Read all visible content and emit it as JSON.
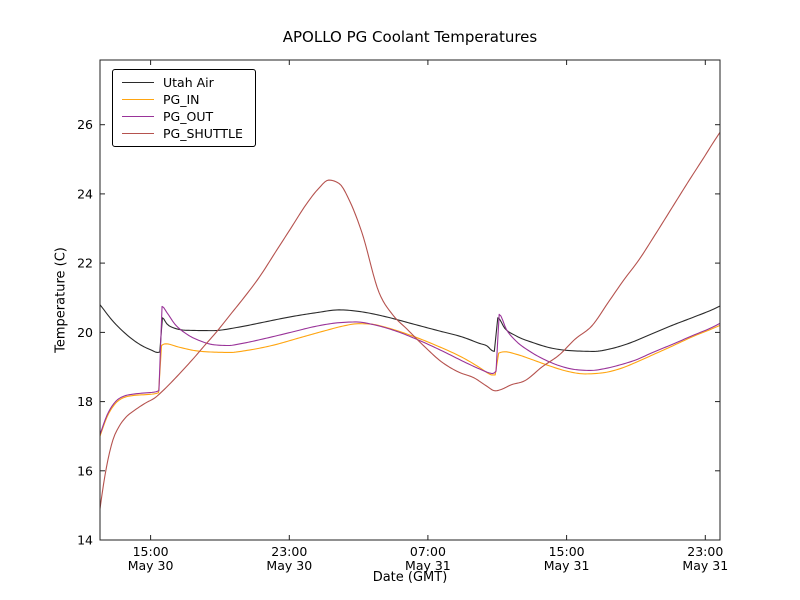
{
  "chart_data": {
    "type": "line",
    "title": "APOLLO PG Coolant Temperatures",
    "xlabel": "Date (GMT)",
    "ylabel": "Temperature (C)",
    "x_unit": "hours since May 30 12:00 GMT",
    "xlim": [
      0,
      35.77
    ],
    "ylim": [
      14,
      27.87
    ],
    "grid": false,
    "legend_position": "upper left",
    "axis_color": "#222222",
    "x_ticks": [
      {
        "t": 2.92,
        "time": "15:00",
        "date": "May 30"
      },
      {
        "t": 10.92,
        "time": "23:00",
        "date": "May 30"
      },
      {
        "t": 18.92,
        "time": "07:00",
        "date": "May 31"
      },
      {
        "t": 26.92,
        "time": "15:00",
        "date": "May 31"
      },
      {
        "t": 34.92,
        "time": "23:00",
        "date": "May 31"
      }
    ],
    "y_ticks": [
      14,
      16,
      18,
      20,
      22,
      24,
      26
    ],
    "series": [
      {
        "name": "Utah Air",
        "color": "#2b2b2b",
        "points": [
          [
            0,
            20.8
          ],
          [
            0.7,
            20.35
          ],
          [
            1.5,
            19.95
          ],
          [
            2.3,
            19.65
          ],
          [
            3,
            19.48
          ],
          [
            3.3,
            19.42
          ],
          [
            3.45,
            19.43
          ],
          [
            3.6,
            20.42
          ],
          [
            3.85,
            20.25
          ],
          [
            4.3,
            20.12
          ],
          [
            5,
            20.06
          ],
          [
            6.5,
            20.05
          ],
          [
            8,
            20.15
          ],
          [
            9.5,
            20.3
          ],
          [
            11,
            20.45
          ],
          [
            12.5,
            20.57
          ],
          [
            13.8,
            20.65
          ],
          [
            15,
            20.6
          ],
          [
            16.5,
            20.45
          ],
          [
            18,
            20.25
          ],
          [
            19.5,
            20.05
          ],
          [
            21,
            19.85
          ],
          [
            21.9,
            19.68
          ],
          [
            22.35,
            19.6
          ],
          [
            22.6,
            19.48
          ],
          [
            22.75,
            19.45
          ],
          [
            22.95,
            20.42
          ],
          [
            23.35,
            20.12
          ],
          [
            24,
            19.9
          ],
          [
            25,
            19.7
          ],
          [
            26,
            19.55
          ],
          [
            27.2,
            19.47
          ],
          [
            28.5,
            19.45
          ],
          [
            29.5,
            19.53
          ],
          [
            30.5,
            19.68
          ],
          [
            31.8,
            19.95
          ],
          [
            33,
            20.2
          ],
          [
            34.3,
            20.45
          ],
          [
            35.3,
            20.65
          ],
          [
            35.77,
            20.76
          ]
        ]
      },
      {
        "name": "PG_IN",
        "color": "#ffa510",
        "points": [
          [
            0,
            17
          ],
          [
            0.4,
            17.55
          ],
          [
            0.9,
            17.95
          ],
          [
            1.4,
            18.12
          ],
          [
            2,
            18.18
          ],
          [
            2.6,
            18.2
          ],
          [
            3.2,
            18.23
          ],
          [
            3.38,
            18.26
          ],
          [
            3.55,
            19.62
          ],
          [
            3.8,
            19.67
          ],
          [
            4.5,
            19.58
          ],
          [
            5.5,
            19.47
          ],
          [
            6.5,
            19.43
          ],
          [
            7.5,
            19.42
          ],
          [
            8.5,
            19.48
          ],
          [
            10,
            19.63
          ],
          [
            11.5,
            19.84
          ],
          [
            13,
            20.05
          ],
          [
            14,
            20.18
          ],
          [
            14.9,
            20.25
          ],
          [
            15.6,
            20.24
          ],
          [
            16.6,
            20.13
          ],
          [
            18,
            19.9
          ],
          [
            19.5,
            19.6
          ],
          [
            21,
            19.25
          ],
          [
            22,
            18.95
          ],
          [
            22.45,
            18.8
          ],
          [
            22.6,
            18.77
          ],
          [
            22.8,
            18.77
          ],
          [
            23,
            19.4
          ],
          [
            23.35,
            19.44
          ],
          [
            24,
            19.37
          ],
          [
            25,
            19.2
          ],
          [
            26,
            19.02
          ],
          [
            27,
            18.87
          ],
          [
            28,
            18.8
          ],
          [
            29,
            18.83
          ],
          [
            30,
            18.95
          ],
          [
            31,
            19.15
          ],
          [
            31.8,
            19.33
          ],
          [
            33,
            19.6
          ],
          [
            34.3,
            19.9
          ],
          [
            35.3,
            20.1
          ],
          [
            35.77,
            20.2
          ]
        ]
      },
      {
        "name": "PG_OUT",
        "color": "#993399",
        "points": [
          [
            0,
            17.05
          ],
          [
            0.4,
            17.6
          ],
          [
            0.9,
            18
          ],
          [
            1.4,
            18.16
          ],
          [
            2,
            18.22
          ],
          [
            2.6,
            18.25
          ],
          [
            3.2,
            18.28
          ],
          [
            3.4,
            18.32
          ],
          [
            3.58,
            20.75
          ],
          [
            3.85,
            20.58
          ],
          [
            4.3,
            20.25
          ],
          [
            5,
            19.95
          ],
          [
            5.8,
            19.75
          ],
          [
            6.6,
            19.64
          ],
          [
            7.4,
            19.62
          ],
          [
            8.2,
            19.68
          ],
          [
            9.5,
            19.82
          ],
          [
            11,
            20
          ],
          [
            12.5,
            20.18
          ],
          [
            13.8,
            20.28
          ],
          [
            14.8,
            20.3
          ],
          [
            15.8,
            20.22
          ],
          [
            17,
            20.05
          ],
          [
            18.5,
            19.75
          ],
          [
            20,
            19.4
          ],
          [
            21,
            19.15
          ],
          [
            22,
            18.92
          ],
          [
            22.45,
            18.83
          ],
          [
            22.65,
            18.81
          ],
          [
            22.85,
            18.88
          ],
          [
            23.03,
            20.52
          ],
          [
            23.45,
            20.08
          ],
          [
            24,
            19.75
          ],
          [
            24.8,
            19.45
          ],
          [
            25.7,
            19.2
          ],
          [
            26.6,
            19.02
          ],
          [
            27.5,
            18.92
          ],
          [
            28.3,
            18.9
          ],
          [
            29.2,
            18.96
          ],
          [
            30,
            19.06
          ],
          [
            31,
            19.22
          ],
          [
            31.8,
            19.4
          ],
          [
            33,
            19.65
          ],
          [
            34.3,
            19.93
          ],
          [
            35.3,
            20.14
          ],
          [
            35.77,
            20.26
          ]
        ]
      },
      {
        "name": "PG_SHUTTLE",
        "color": "#b5524e",
        "points": [
          [
            0,
            14.9
          ],
          [
            0.2,
            15.6
          ],
          [
            0.45,
            16.3
          ],
          [
            0.75,
            16.9
          ],
          [
            1.1,
            17.28
          ],
          [
            1.5,
            17.55
          ],
          [
            2,
            17.75
          ],
          [
            2.6,
            17.95
          ],
          [
            3.2,
            18.12
          ],
          [
            3.6,
            18.3
          ],
          [
            4.2,
            18.6
          ],
          [
            4.8,
            18.92
          ],
          [
            5.4,
            19.25
          ],
          [
            6,
            19.6
          ],
          [
            6.7,
            20
          ],
          [
            7.5,
            20.5
          ],
          [
            8.3,
            21
          ],
          [
            9.2,
            21.6
          ],
          [
            10.1,
            22.3
          ],
          [
            11,
            23
          ],
          [
            11.9,
            23.7
          ],
          [
            12.6,
            24.15
          ],
          [
            13.2,
            24.4
          ],
          [
            13.8,
            24.3
          ],
          [
            14.4,
            23.8
          ],
          [
            15.1,
            22.9
          ],
          [
            16.1,
            21.15
          ],
          [
            16.9,
            20.5
          ],
          [
            17.7,
            20.1
          ],
          [
            18.7,
            19.6
          ],
          [
            19.7,
            19.15
          ],
          [
            20.7,
            18.85
          ],
          [
            21.6,
            18.68
          ],
          [
            22.3,
            18.45
          ],
          [
            22.8,
            18.31
          ],
          [
            23.2,
            18.36
          ],
          [
            23.7,
            18.48
          ],
          [
            24.5,
            18.6
          ],
          [
            25.5,
            19
          ],
          [
            26.5,
            19.35
          ],
          [
            27.4,
            19.8
          ],
          [
            28.4,
            20.2
          ],
          [
            29.3,
            20.85
          ],
          [
            30.2,
            21.5
          ],
          [
            31.1,
            22.1
          ],
          [
            32,
            22.8
          ],
          [
            33,
            23.6
          ],
          [
            34,
            24.4
          ],
          [
            34.9,
            25.1
          ],
          [
            35.4,
            25.5
          ],
          [
            35.77,
            25.78
          ]
        ]
      }
    ]
  }
}
